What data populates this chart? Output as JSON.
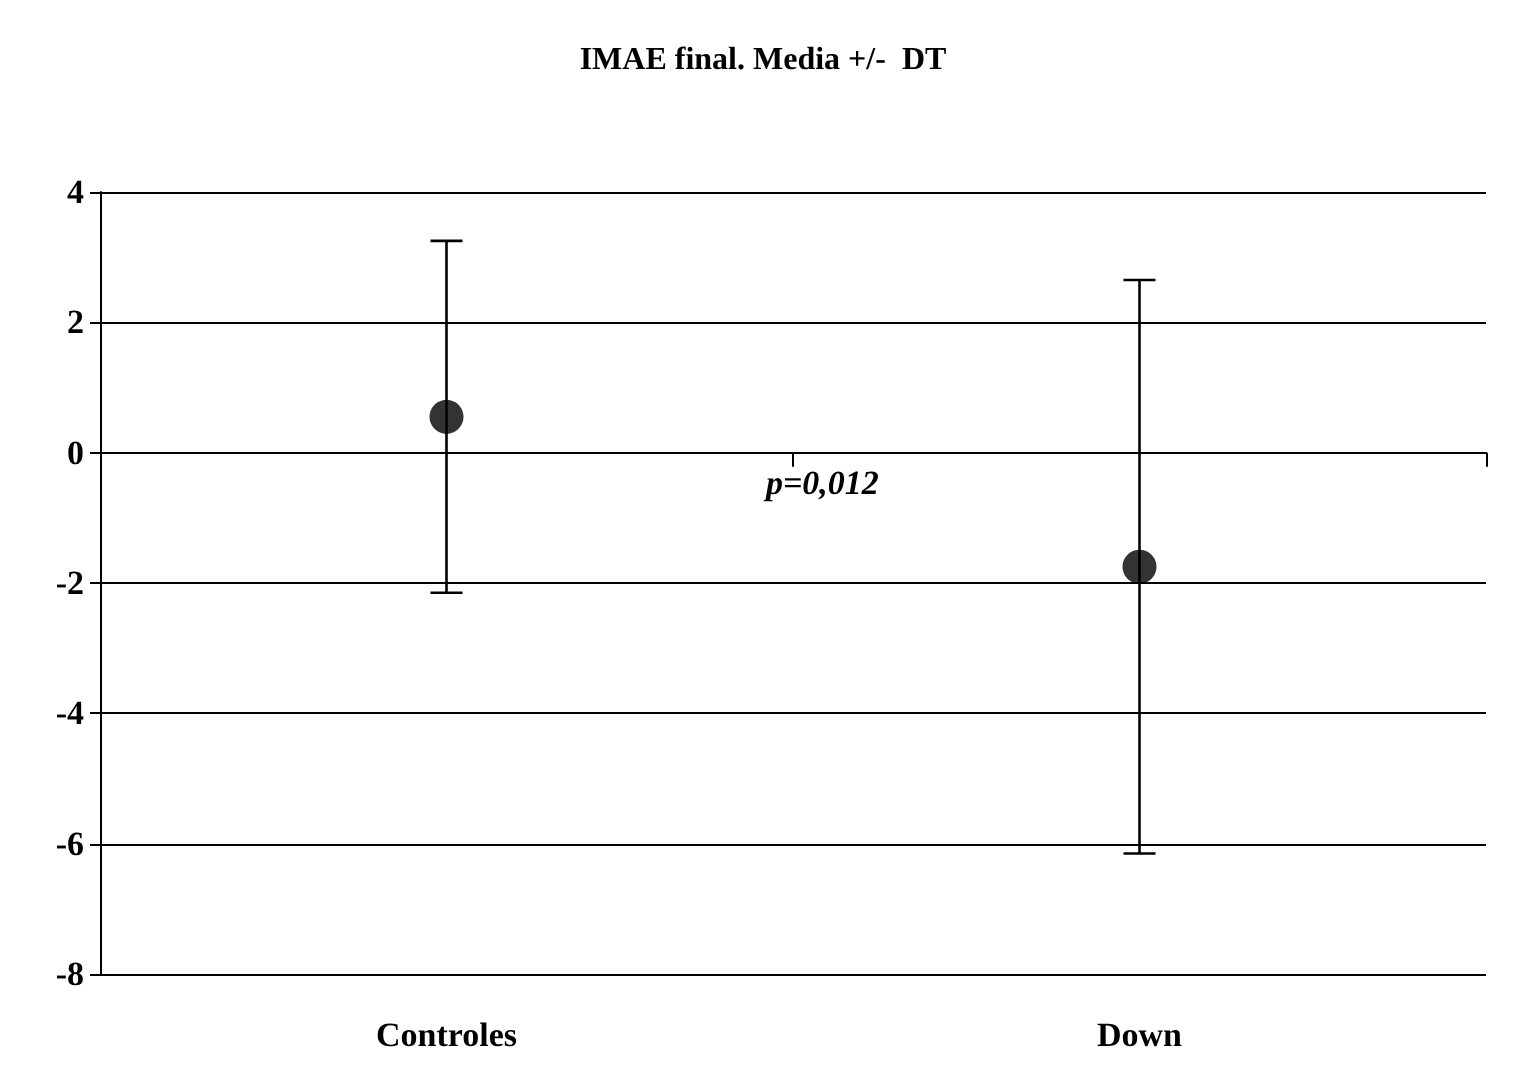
{
  "chart_data": {
    "type": "scatter",
    "title": "IMAE final. Media +/-  DT",
    "categories": [
      "Controles",
      "Down"
    ],
    "series": [
      {
        "color": "#000000",
        "values": [
          0.55,
          -1.75
        ],
        "errors": [
          2.7,
          4.4
        ]
      }
    ],
    "ylim": [
      -8,
      4
    ],
    "yticks": [
      -8,
      -6,
      -4,
      -2,
      0,
      2,
      4
    ],
    "grid": "y",
    "marker": "circle",
    "annotations": [
      "p=0,012"
    ]
  }
}
